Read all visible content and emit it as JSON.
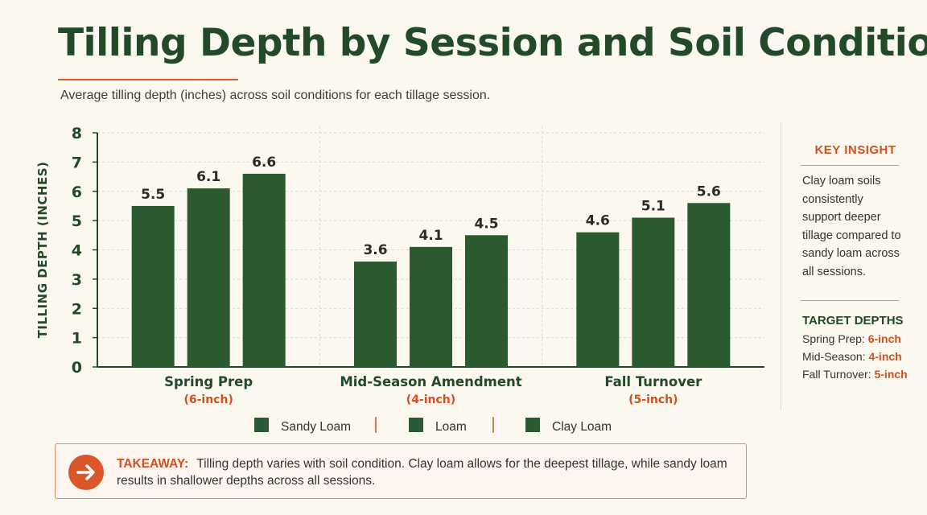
{
  "header": {
    "title": "Tilling Depth by Session and Soil Condition",
    "subtitle": "Average tilling depth (inches) across soil conditions for each tillage session."
  },
  "colors": {
    "bar": "#2b5a30",
    "accent": "#d0501f",
    "title": "#234a28",
    "grid": "#d9d6cc"
  },
  "chart_data": {
    "type": "bar",
    "title": "Tilling Depth by Session and Soil Condition",
    "ylabel": "TILLING DEPTH (INCHES)",
    "xlabel": "",
    "ylim": [
      0,
      8
    ],
    "yticks": [
      "0",
      "1",
      "2",
      "3",
      "4",
      "5",
      "6",
      "7",
      "8"
    ],
    "categories": [
      "Spring Prep",
      "Mid-Season Amendment",
      "Fall Turnover"
    ],
    "category_sublabels": [
      "(6-inch)",
      "(4-inch)",
      "(5-inch)"
    ],
    "series": [
      {
        "name": "Sandy Loam",
        "values": [
          5.5,
          3.6,
          4.6
        ],
        "labels": [
          "5.5",
          "3.6",
          "4.6"
        ]
      },
      {
        "name": "Loam",
        "values": [
          6.1,
          4.1,
          5.1
        ],
        "labels": [
          "6.1",
          "4.1",
          "5.1"
        ]
      },
      {
        "name": "Clay Loam",
        "values": [
          6.6,
          4.5,
          5.6
        ],
        "labels": [
          "6.6",
          "4.5",
          "5.6"
        ]
      }
    ],
    "grid": true,
    "legend": "bottom"
  },
  "sidebar": {
    "key_title": "KEY INSIGHT",
    "insight": "Clay loam soils consistently support deeper tillage compared to sandy loam across all sessions.",
    "target_title": "TARGET DEPTHS",
    "targets": [
      {
        "label": "Spring Prep:",
        "value": "6-inch"
      },
      {
        "label": "Mid-Season:",
        "value": "4-inch"
      },
      {
        "label": "Fall Turnover:",
        "value": "5-inch"
      }
    ]
  },
  "takeaway": {
    "label": "TAKEAWAY:",
    "text": "Tilling depth varies with soil condition. Clay loam allows for the deepest tillage, while sandy loam results in shallower depths across all sessions.",
    "icon": "arrow-right-icon"
  }
}
